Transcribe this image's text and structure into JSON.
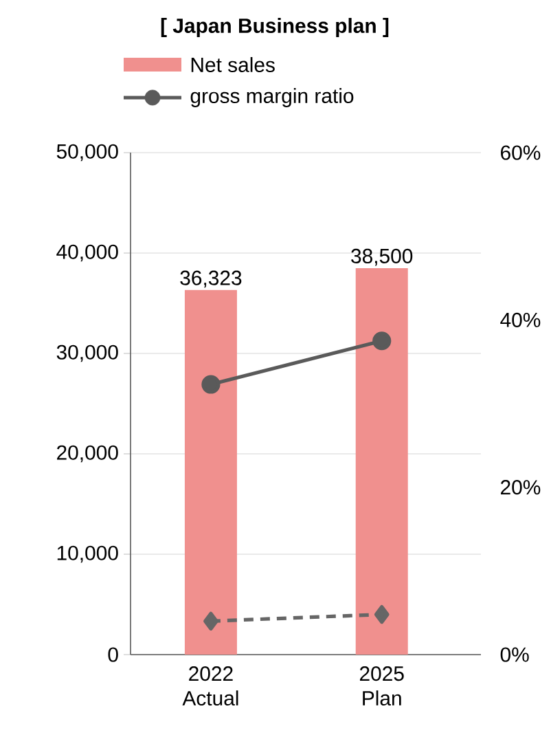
{
  "chart_data": {
    "type": "bar",
    "title": "[ Japan Business plan ]",
    "categories": [
      "2022 Actual",
      "2025 Plan"
    ],
    "series": [
      {
        "name": "Net sales",
        "color": "#f0908e",
        "values": [
          36323,
          38500
        ],
        "value_labels": [
          "36,323",
          "38,500"
        ]
      },
      {
        "name": "gross margin ratio",
        "type": "line",
        "axis": "y2",
        "color": "#5a5a5a",
        "marker": "circle",
        "line_style": "solid",
        "values": [
          32.3,
          37.5
        ]
      },
      {
        "type": "line",
        "axis": "y2",
        "color": "#666666",
        "marker": "diamond",
        "line_style": "dashed",
        "values": [
          4.0,
          4.8
        ]
      }
    ],
    "ylim": [
      0,
      50000
    ],
    "yticks": [
      {
        "value": 0,
        "label": "0"
      },
      {
        "value": 10000,
        "label": "10,000"
      },
      {
        "value": 20000,
        "label": "20,000"
      },
      {
        "value": 30000,
        "label": "30,000"
      },
      {
        "value": 40000,
        "label": "40,000"
      },
      {
        "value": 50000,
        "label": "50,000"
      }
    ],
    "y2lim": [
      0,
      60
    ],
    "y2ticks": [
      {
        "value": 0,
        "label": "0%"
      },
      {
        "value": 20,
        "label": "20%"
      },
      {
        "value": 40,
        "label": "40%"
      },
      {
        "value": 60,
        "label": "60%"
      }
    ],
    "grid": "y",
    "legend": "top left"
  }
}
